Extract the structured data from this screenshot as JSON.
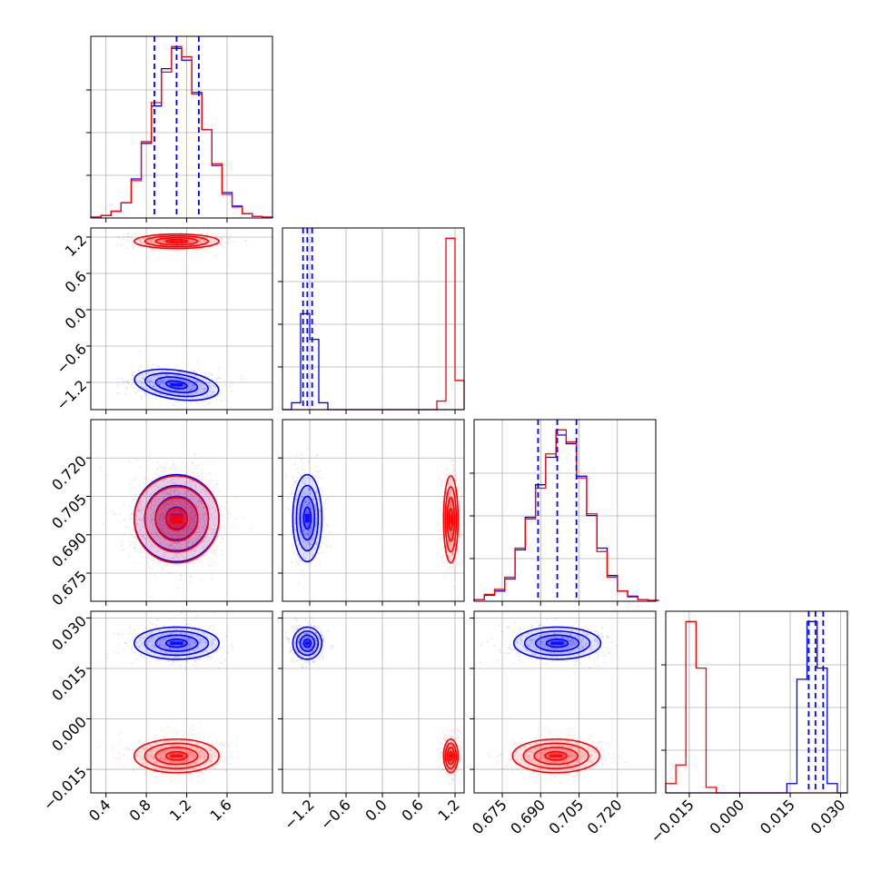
{
  "chart_data": {
    "type": "corner",
    "grid": true,
    "colors": {
      "series_a": "#0000ff",
      "series_b": "#ff0000"
    },
    "parameters": [
      {
        "range": [
          0.25,
          2.05
        ],
        "ticks": [
          0.4,
          0.8,
          1.2,
          1.6
        ],
        "tick_labels": [
          "0.4",
          "0.8",
          "1.2",
          "1.6"
        ]
      },
      {
        "range": [
          -1.65,
          1.35
        ],
        "ticks": [
          -1.2,
          -0.6,
          0.0,
          0.6,
          1.2
        ],
        "tick_labels": [
          "−1.2",
          "−0.6",
          "0.0",
          "0.6",
          "1.2"
        ]
      },
      {
        "range": [
          0.664,
          0.735
        ],
        "ticks": [
          0.675,
          0.69,
          0.705,
          0.72
        ],
        "tick_labels": [
          "0.675",
          "0.690",
          "0.705",
          "0.720"
        ]
      },
      {
        "range": [
          -0.022,
          0.032
        ],
        "ticks": [
          -0.015,
          0.0,
          0.015,
          0.03
        ],
        "tick_labels": [
          "−0.015",
          "0.000",
          "0.015",
          "0.030"
        ]
      }
    ],
    "series": [
      {
        "color": "#0000ff",
        "means": [
          1.1,
          -1.24,
          0.6965,
          0.0225
        ],
        "sds": [
          0.21,
          0.12,
          0.0085,
          0.0024
        ],
        "quantiles": [
          [
            0.88,
            1.1,
            1.32
          ],
          [
            -1.31,
            -1.24,
            -1.16
          ],
          [
            0.689,
            0.6965,
            0.704
          ],
          [
            0.0205,
            0.0225,
            0.0248
          ]
        ]
      },
      {
        "color": "#ff0000",
        "means": [
          1.1,
          1.13,
          0.696,
          -0.011
        ],
        "sds": [
          0.21,
          0.06,
          0.0085,
          0.0025
        ],
        "quantiles": []
      }
    ],
    "marginals": [
      {
        "bins": [
          0.25,
          0.35,
          0.45,
          0.55,
          0.65,
          0.75,
          0.85,
          0.95,
          1.05,
          1.15,
          1.25,
          1.35,
          1.45,
          1.55,
          1.65,
          1.75,
          1.85,
          1.95,
          2.05
        ],
        "counts": {
          "series_a": [
            0.005,
            0.015,
            0.04,
            0.09,
            0.23,
            0.44,
            0.66,
            0.88,
            1.0,
            0.93,
            0.74,
            0.52,
            0.31,
            0.15,
            0.07,
            0.025,
            0.01,
            0.005
          ],
          "series_b": [
            0.005,
            0.015,
            0.04,
            0.09,
            0.22,
            0.45,
            0.68,
            0.86,
            1.01,
            0.95,
            0.73,
            0.52,
            0.32,
            0.14,
            0.065,
            0.025,
            0.01,
            0.005
          ]
        },
        "quantiles": [
          0.88,
          1.1,
          1.32
        ]
      },
      {
        "bins": [
          -1.65,
          -1.5,
          -1.35,
          -1.2,
          -1.05,
          -0.9,
          -0.75,
          -0.6,
          -0.45,
          -0.3,
          -0.15,
          0.0,
          0.15,
          0.3,
          0.45,
          0.6,
          0.75,
          0.9,
          1.05,
          1.2,
          1.35
        ],
        "counts": {
          "series_a": [
            0,
            0.04,
            0.56,
            0.41,
            0.04,
            0,
            0,
            0,
            0,
            0,
            0,
            0,
            0,
            0,
            0,
            0,
            0,
            0,
            0,
            0
          ],
          "series_b": [
            0,
            0,
            0,
            0,
            0,
            0,
            0,
            0,
            0,
            0,
            0,
            0,
            0,
            0,
            0,
            0,
            0,
            0.05,
            1.0,
            0.17
          ]
        },
        "quantiles": [
          -1.31,
          -1.24,
          -1.16
        ]
      },
      {
        "bins": [
          0.664,
          0.668,
          0.672,
          0.676,
          0.68,
          0.684,
          0.688,
          0.692,
          0.696,
          0.7,
          0.704,
          0.708,
          0.712,
          0.716,
          0.72,
          0.724,
          0.728,
          0.732,
          0.736
        ],
        "counts": {
          "series_a": [
            0.01,
            0.035,
            0.06,
            0.13,
            0.3,
            0.49,
            0.68,
            0.84,
            0.97,
            0.92,
            0.73,
            0.5,
            0.31,
            0.15,
            0.06,
            0.03,
            0.01,
            0.005
          ],
          "series_b": [
            0.01,
            0.04,
            0.07,
            0.14,
            0.31,
            0.48,
            0.66,
            0.86,
            1.0,
            0.93,
            0.72,
            0.51,
            0.29,
            0.14,
            0.06,
            0.025,
            0.01,
            0.005
          ]
        },
        "quantiles": [
          0.689,
          0.6965,
          0.704
        ]
      },
      {
        "bins": [
          -0.022,
          -0.019,
          -0.016,
          -0.013,
          -0.01,
          -0.007,
          -0.004,
          -0.001,
          0.002,
          0.005,
          0.008,
          0.011,
          0.014,
          0.017,
          0.02,
          0.023,
          0.026,
          0.029,
          0.032
        ],
        "counts": {
          "series_a": [
            0,
            0,
            0,
            0,
            0,
            0,
            0,
            0,
            0,
            0,
            0,
            0,
            0.05,
            0.61,
            0.92,
            0.67,
            0.05,
            0
          ],
          "series_b": [
            0.05,
            0.15,
            0.92,
            0.67,
            0.03,
            0,
            0,
            0,
            0,
            0,
            0,
            0,
            0,
            0,
            0,
            0,
            0,
            0
          ]
        },
        "quantiles": [
          0.0205,
          0.0225,
          0.0248
        ]
      }
    ]
  }
}
